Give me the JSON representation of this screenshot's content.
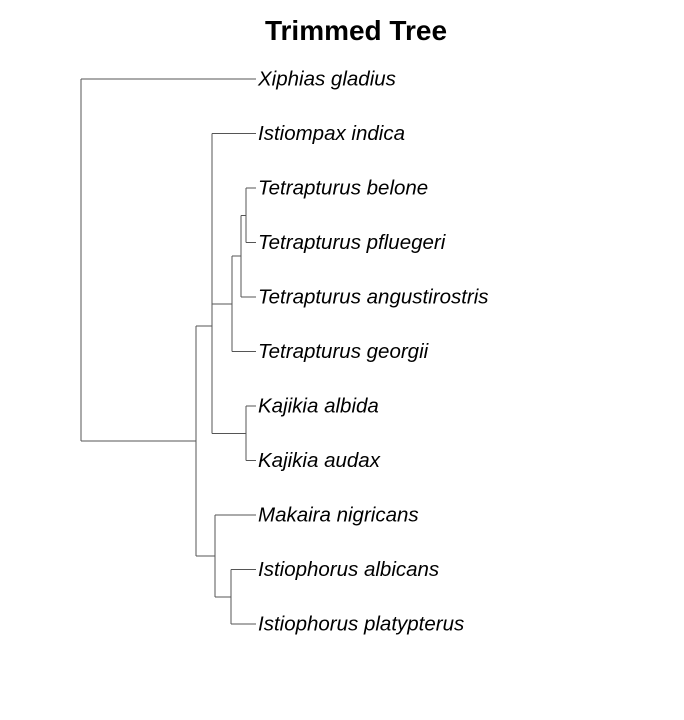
{
  "title": "Trimmed Tree",
  "tree": {
    "children": [
      {
        "name": "Xiphias gladius"
      },
      {
        "children": [
          {
            "children": [
              {
                "name": "Istiompax indica"
              },
              {
                "children": [
                  {
                    "children": [
                      {
                        "children": [
                          {
                            "name": "Tetrapturus belone"
                          },
                          {
                            "name": "Tetrapturus pfluegeri"
                          }
                        ]
                      },
                      {
                        "name": "Tetrapturus angustirostris"
                      }
                    ]
                  },
                  {
                    "name": "Tetrapturus georgii"
                  }
                ]
              }
            ]
          },
          {
            "children": [
              {
                "name": "Kajikia albida"
              },
              {
                "name": "Kajikia audax"
              }
            ]
          }
        ]
      },
      {
        "children": [
          {
            "name": "Makaira nigricans"
          },
          {
            "children": [
              {
                "name": "Istiophorus albicans"
              },
              {
                "name": "Istiophorus platypterus"
              }
            ]
          }
        ]
      }
    ]
  }
}
